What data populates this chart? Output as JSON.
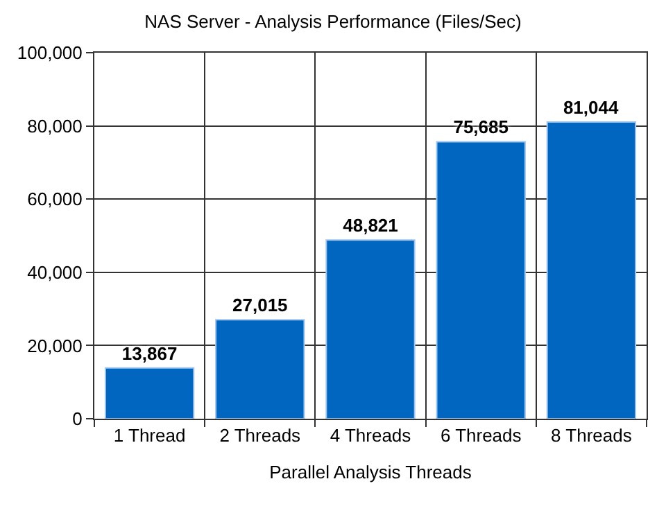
{
  "chart_data": {
    "type": "bar",
    "title": "NAS Server - Analysis Performance (Files/Sec)",
    "xlabel": "Parallel Analysis Threads",
    "categories": [
      "1 Thread",
      "2 Threads",
      "4 Threads",
      "6 Threads",
      "8 Threads"
    ],
    "values": [
      13867,
      27015,
      48821,
      75685,
      81044
    ],
    "color": "#0066bf",
    "value_labels": [
      "13,867",
      "27,015",
      "48,821",
      "75,685",
      "81,044"
    ],
    "ylim": [
      0,
      100000
    ],
    "yticks": [
      0,
      {
        "value": 20000,
        "label": "20,000"
      },
      {
        "value": 40000,
        "label": "40,000"
      },
      {
        "value": 60000,
        "label": "60,000"
      },
      {
        "value": 80000,
        "label": "80,000"
      },
      {
        "value": 100000,
        "label": "100,000"
      }
    ],
    "grid": true
  }
}
